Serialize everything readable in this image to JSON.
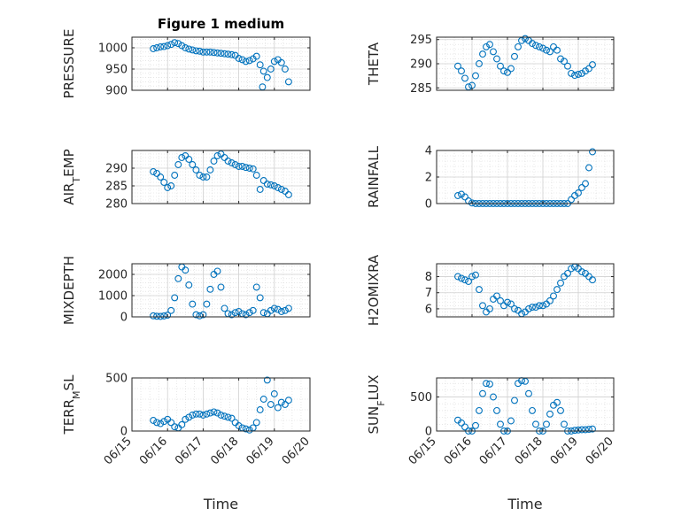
{
  "chart_data": [
    {
      "type": "scatter",
      "title": "Figure 1 medium",
      "xlabel": "",
      "ylabel": "PRESSURE",
      "ylim": [
        900,
        1025
      ],
      "yticks": [
        "900",
        "950",
        "1000"
      ],
      "xticks": [
        "06/15",
        "06/16",
        "06/17",
        "06/18",
        "06/19",
        "06/20"
      ],
      "xlim": [
        "06/15",
        "06/20"
      ],
      "grid": true,
      "minor_grid": true,
      "x": [
        "06/15 14:24",
        "06/15 16:48",
        "06/15 19:12",
        "06/15 21:36",
        "06/16 00:00",
        "06/16 02:24",
        "06/16 04:48",
        "06/16 07:12",
        "06/16 09:36",
        "06/16 12:00",
        "06/16 14:24",
        "06/16 16:48",
        "06/16 19:12",
        "06/16 21:36",
        "06/17 00:00",
        "06/17 02:24",
        "06/17 04:48",
        "06/17 07:12",
        "06/17 09:36",
        "06/17 12:00",
        "06/17 14:24",
        "06/17 16:48",
        "06/17 19:12",
        "06/17 21:36",
        "06/18 00:00",
        "06/18 02:24",
        "06/18 04:48",
        "06/18 07:12",
        "06/18 09:36",
        "06/18 12:00",
        "06/18 14:24",
        "06/18 16:48",
        "06/18 19:12",
        "06/18 21:36",
        "06/19 00:00",
        "06/19 02:24",
        "06/19 04:48",
        "06/19 07:12",
        "06/19 09:36"
      ],
      "y": [
        998,
        1000,
        1002,
        1003,
        1005,
        1008,
        1012,
        1010,
        1005,
        1000,
        997,
        995,
        993,
        992,
        990,
        990,
        990,
        989,
        988,
        987,
        986,
        985,
        984,
        982,
        975,
        972,
        968,
        970,
        974,
        980,
        960,
        945,
        930,
        950,
        968,
        972,
        965,
        950,
        920
      ],
      "y_extra_points": [
        {
          "x": "06/18 16:00",
          "y": 908
        }
      ]
    },
    {
      "type": "scatter",
      "title": "",
      "xlabel": "",
      "ylabel": "THETA",
      "ylim": [
        284.5,
        295.5
      ],
      "yticks": [
        "285",
        "290",
        "295"
      ],
      "xticks": [
        "06/15",
        "06/16",
        "06/17",
        "06/18",
        "06/19",
        "06/20"
      ],
      "grid": true,
      "minor_grid": true,
      "x": [
        "06/15 14:24",
        "06/15 16:48",
        "06/15 19:12",
        "06/15 21:36",
        "06/16 00:00",
        "06/16 02:24",
        "06/16 04:48",
        "06/16 07:12",
        "06/16 09:36",
        "06/16 12:00",
        "06/16 14:24",
        "06/16 16:48",
        "06/16 19:12",
        "06/16 21:36",
        "06/17 00:00",
        "06/17 02:24",
        "06/17 04:48",
        "06/17 07:12",
        "06/17 09:36",
        "06/17 12:00",
        "06/17 14:24",
        "06/17 16:48",
        "06/17 19:12",
        "06/17 21:36",
        "06/18 00:00",
        "06/18 02:24",
        "06/18 04:48",
        "06/18 07:12",
        "06/18 09:36",
        "06/18 12:00",
        "06/18 14:24",
        "06/18 16:48",
        "06/18 19:12",
        "06/18 21:36",
        "06/19 00:00",
        "06/19 02:24",
        "06/19 04:48",
        "06/19 07:12",
        "06/19 09:36"
      ],
      "y": [
        289.5,
        288.5,
        287,
        285.2,
        285.5,
        287.5,
        290,
        292,
        293.5,
        294,
        292.5,
        291,
        289.5,
        288.5,
        288.2,
        289,
        291.5,
        293.5,
        294.8,
        295.2,
        294.8,
        294.2,
        293.8,
        293.5,
        293.2,
        292.8,
        292.5,
        293.5,
        292.8,
        291,
        290.5,
        289.5,
        288,
        287.6,
        287.8,
        288,
        288.5,
        289,
        289.8
      ]
    },
    {
      "type": "scatter",
      "title": "",
      "xlabel": "",
      "ylabel": "AIR_TEMP",
      "ylim": [
        280,
        295
      ],
      "yticks": [
        "280",
        "285",
        "290"
      ],
      "xticks": [
        "06/15",
        "06/16",
        "06/17",
        "06/18",
        "06/19",
        "06/20"
      ],
      "grid": true,
      "minor_grid": true,
      "x": [
        "06/15 14:24",
        "06/15 16:48",
        "06/15 19:12",
        "06/15 21:36",
        "06/16 00:00",
        "06/16 02:24",
        "06/16 04:48",
        "06/16 07:12",
        "06/16 09:36",
        "06/16 12:00",
        "06/16 14:24",
        "06/16 16:48",
        "06/16 19:12",
        "06/16 21:36",
        "06/17 00:00",
        "06/17 02:24",
        "06/17 04:48",
        "06/17 07:12",
        "06/17 09:36",
        "06/17 12:00",
        "06/17 14:24",
        "06/17 16:48",
        "06/17 19:12",
        "06/17 21:36",
        "06/18 00:00",
        "06/18 02:24",
        "06/18 04:48",
        "06/18 07:12",
        "06/18 09:36",
        "06/18 12:00",
        "06/18 14:24",
        "06/18 16:48",
        "06/18 19:12",
        "06/18 21:36",
        "06/19 00:00",
        "06/19 02:24",
        "06/19 04:48",
        "06/19 07:12",
        "06/19 09:36"
      ],
      "y": [
        289,
        288.5,
        287.5,
        286,
        284.5,
        285,
        288,
        291,
        293,
        293.5,
        292.5,
        291,
        289.5,
        288,
        287.5,
        287.5,
        289.5,
        292,
        293.5,
        294,
        293,
        292,
        291.5,
        291,
        290.5,
        290.5,
        290.2,
        290,
        289.8,
        288,
        284,
        286.5,
        285.5,
        285.3,
        285,
        284.5,
        284,
        283.5,
        282.5
      ]
    },
    {
      "type": "scatter",
      "title": "",
      "xlabel": "",
      "ylabel": "RAINFALL",
      "ylim": [
        0,
        4
      ],
      "yticks": [
        "0",
        "2",
        "4"
      ],
      "xticks": [
        "06/15",
        "06/16",
        "06/17",
        "06/18",
        "06/19",
        "06/20"
      ],
      "grid": true,
      "minor_grid": true,
      "x": [
        "06/15 14:24",
        "06/15 16:48",
        "06/15 19:12",
        "06/15 21:36",
        "06/16 00:00",
        "06/16 02:24",
        "06/16 04:48",
        "06/16 07:12",
        "06/16 09:36",
        "06/16 12:00",
        "06/16 14:24",
        "06/16 16:48",
        "06/16 19:12",
        "06/16 21:36",
        "06/17 00:00",
        "06/17 02:24",
        "06/17 04:48",
        "06/17 07:12",
        "06/17 09:36",
        "06/17 12:00",
        "06/17 14:24",
        "06/17 16:48",
        "06/17 19:12",
        "06/17 21:36",
        "06/18 00:00",
        "06/18 02:24",
        "06/18 04:48",
        "06/18 07:12",
        "06/18 09:36",
        "06/18 12:00",
        "06/18 14:24",
        "06/18 16:48",
        "06/18 19:12",
        "06/18 21:36",
        "06/19 00:00",
        "06/19 02:24",
        "06/19 04:48",
        "06/19 07:12",
        "06/19 09:36"
      ],
      "y": [
        0.6,
        0.7,
        0.5,
        0.2,
        0.05,
        0,
        0,
        0,
        0,
        0,
        0,
        0,
        0,
        0,
        0,
        0,
        0,
        0,
        0,
        0,
        0,
        0,
        0,
        0,
        0,
        0,
        0,
        0,
        0,
        0,
        0,
        0,
        0.3,
        0.6,
        0.8,
        1.2,
        1.5,
        2.7,
        3.9
      ]
    },
    {
      "type": "scatter",
      "title": "",
      "xlabel": "",
      "ylabel": "MIXDEPTH",
      "ylim": [
        0,
        2500
      ],
      "yticks": [
        "0",
        "1000",
        "2000"
      ],
      "xticks": [
        "06/15",
        "06/16",
        "06/17",
        "06/18",
        "06/19",
        "06/20"
      ],
      "grid": true,
      "minor_grid": true,
      "x": [
        "06/15 14:24",
        "06/15 16:48",
        "06/15 19:12",
        "06/15 21:36",
        "06/16 00:00",
        "06/16 02:24",
        "06/16 04:48",
        "06/16 07:12",
        "06/16 09:36",
        "06/16 12:00",
        "06/16 14:24",
        "06/16 16:48",
        "06/16 19:12",
        "06/16 21:36",
        "06/17 00:00",
        "06/17 02:24",
        "06/17 04:48",
        "06/17 07:12",
        "06/17 09:36",
        "06/17 12:00",
        "06/17 14:24",
        "06/17 16:48",
        "06/17 19:12",
        "06/17 21:36",
        "06/18 00:00",
        "06/18 02:24",
        "06/18 04:48",
        "06/18 07:12",
        "06/18 09:36",
        "06/18 12:00",
        "06/18 14:24",
        "06/18 16:48",
        "06/18 19:12",
        "06/18 21:36",
        "06/19 00:00",
        "06/19 02:24",
        "06/19 04:48",
        "06/19 07:12",
        "06/19 09:36"
      ],
      "y": [
        50,
        30,
        20,
        40,
        80,
        300,
        900,
        1800,
        2350,
        2200,
        1500,
        600,
        100,
        50,
        100,
        600,
        1300,
        2000,
        2150,
        1400,
        400,
        150,
        100,
        200,
        250,
        150,
        100,
        200,
        300,
        1400,
        900,
        200,
        150,
        300,
        400,
        350,
        250,
        300,
        400
      ]
    },
    {
      "type": "scatter",
      "title": "",
      "xlabel": "",
      "ylabel": "H2OMIXRA",
      "ylim": [
        5.5,
        8.8
      ],
      "yticks": [
        "6",
        "7",
        "8"
      ],
      "xticks": [
        "06/15",
        "06/16",
        "06/17",
        "06/18",
        "06/19",
        "06/20"
      ],
      "grid": true,
      "minor_grid": true,
      "x": [
        "06/15 14:24",
        "06/15 16:48",
        "06/15 19:12",
        "06/15 21:36",
        "06/16 00:00",
        "06/16 02:24",
        "06/16 04:48",
        "06/16 07:12",
        "06/16 09:36",
        "06/16 12:00",
        "06/16 14:24",
        "06/16 16:48",
        "06/16 19:12",
        "06/16 21:36",
        "06/17 00:00",
        "06/17 02:24",
        "06/17 04:48",
        "06/17 07:12",
        "06/17 09:36",
        "06/17 12:00",
        "06/17 14:24",
        "06/17 16:48",
        "06/17 19:12",
        "06/17 21:36",
        "06/18 00:00",
        "06/18 02:24",
        "06/18 04:48",
        "06/18 07:12",
        "06/18 09:36",
        "06/18 12:00",
        "06/18 14:24",
        "06/18 16:48",
        "06/18 19:12",
        "06/18 21:36",
        "06/19 00:00",
        "06/19 02:24",
        "06/19 04:48",
        "06/19 07:12",
        "06/19 09:36"
      ],
      "y": [
        8,
        7.9,
        7.8,
        7.7,
        8,
        8.1,
        7.2,
        6.2,
        5.8,
        6,
        6.6,
        6.8,
        6.5,
        6.2,
        6.4,
        6.3,
        6.0,
        5.9,
        5.7,
        5.8,
        6,
        6.1,
        6.1,
        6.2,
        6.2,
        6.3,
        6.5,
        6.8,
        7.2,
        7.6,
        8,
        8.2,
        8.5,
        8.6,
        8.5,
        8.3,
        8.2,
        8.0,
        7.8
      ]
    },
    {
      "type": "scatter",
      "title": "",
      "xlabel": "Time",
      "ylabel": "TERR_MSL",
      "ylim": [
        0,
        500
      ],
      "yticks": [
        "0",
        "500"
      ],
      "xticks": [
        "06/15",
        "06/16",
        "06/17",
        "06/18",
        "06/19",
        "06/20"
      ],
      "grid": true,
      "minor_grid": true,
      "x": [
        "06/15 14:24",
        "06/15 16:48",
        "06/15 19:12",
        "06/15 21:36",
        "06/16 00:00",
        "06/16 02:24",
        "06/16 04:48",
        "06/16 07:12",
        "06/16 09:36",
        "06/16 12:00",
        "06/16 14:24",
        "06/16 16:48",
        "06/16 19:12",
        "06/16 21:36",
        "06/17 00:00",
        "06/17 02:24",
        "06/17 04:48",
        "06/17 07:12",
        "06/17 09:36",
        "06/17 12:00",
        "06/17 14:24",
        "06/17 16:48",
        "06/17 19:12",
        "06/17 21:36",
        "06/18 00:00",
        "06/18 02:24",
        "06/18 04:48",
        "06/18 07:12",
        "06/18 09:36",
        "06/18 12:00",
        "06/18 14:24",
        "06/18 16:48",
        "06/18 19:12",
        "06/18 21:36",
        "06/19 00:00",
        "06/19 02:24",
        "06/19 04:48",
        "06/19 07:12",
        "06/19 09:36"
      ],
      "y": [
        100,
        80,
        70,
        90,
        110,
        80,
        40,
        30,
        60,
        110,
        130,
        150,
        160,
        160,
        150,
        160,
        170,
        180,
        170,
        150,
        140,
        130,
        120,
        80,
        50,
        30,
        20,
        10,
        30,
        80,
        200,
        300,
        480,
        250,
        350,
        220,
        270,
        250,
        290
      ]
    },
    {
      "type": "scatter",
      "title": "",
      "xlabel": "Time",
      "ylabel": "SUN_FLUX",
      "ylim": [
        0,
        780
      ],
      "yticks": [
        "0",
        "500"
      ],
      "xticks": [
        "06/15",
        "06/16",
        "06/17",
        "06/18",
        "06/19",
        "06/20"
      ],
      "grid": true,
      "minor_grid": true,
      "x": [
        "06/15 14:24",
        "06/15 16:48",
        "06/15 19:12",
        "06/15 21:36",
        "06/16 00:00",
        "06/16 02:24",
        "06/16 04:48",
        "06/16 07:12",
        "06/16 09:36",
        "06/16 12:00",
        "06/16 14:24",
        "06/16 16:48",
        "06/16 19:12",
        "06/16 21:36",
        "06/17 00:00",
        "06/17 02:24",
        "06/17 04:48",
        "06/17 07:12",
        "06/17 09:36",
        "06/17 12:00",
        "06/17 14:24",
        "06/17 16:48",
        "06/17 19:12",
        "06/17 21:36",
        "06/18 00:00",
        "06/18 02:24",
        "06/18 04:48",
        "06/18 07:12",
        "06/18 09:36",
        "06/18 12:00",
        "06/18 14:24",
        "06/18 16:48",
        "06/18 19:12",
        "06/18 21:36",
        "06/19 00:00",
        "06/19 02:24",
        "06/19 04:48",
        "06/19 07:12",
        "06/19 09:36"
      ],
      "y": [
        160,
        120,
        60,
        0,
        0,
        80,
        300,
        550,
        700,
        690,
        500,
        300,
        100,
        0,
        0,
        150,
        450,
        700,
        740,
        730,
        550,
        300,
        100,
        0,
        0,
        100,
        250,
        380,
        420,
        300,
        100,
        0,
        0,
        10,
        15,
        20,
        20,
        25,
        30
      ]
    }
  ]
}
